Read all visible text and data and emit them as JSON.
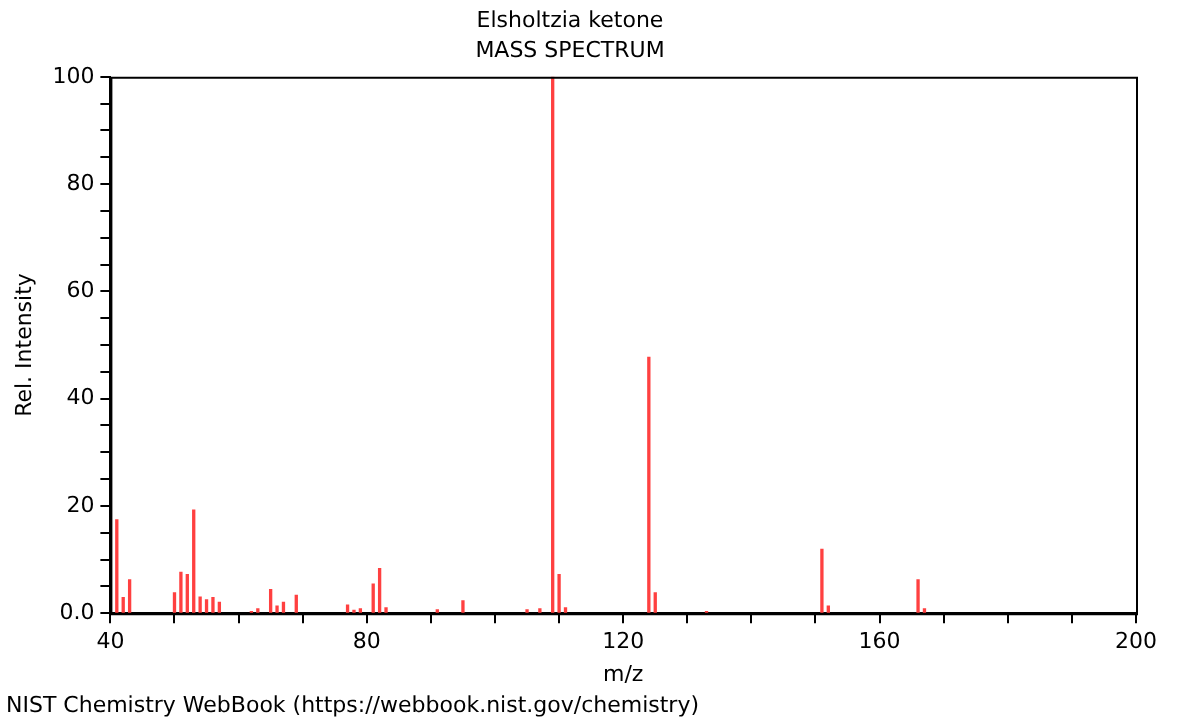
{
  "chart_data": {
    "type": "bar",
    "title": "Elsholtzia ketone",
    "subtitle": "MASS SPECTRUM",
    "xlabel": "m/z",
    "ylabel": "Rel. Intensity",
    "x": [
      41,
      42,
      43,
      50,
      51,
      52,
      53,
      54,
      55,
      56,
      57,
      62,
      63,
      65,
      66,
      67,
      69,
      77,
      78,
      79,
      81,
      82,
      83,
      91,
      95,
      105,
      107,
      109,
      110,
      111,
      124,
      125,
      133,
      151,
      152,
      166,
      167
    ],
    "values": [
      17.4,
      2.9,
      6.2,
      3.8,
      7.6,
      7.2,
      19.2,
      3,
      2.5,
      2.9,
      2,
      0.3,
      0.8,
      4.4,
      1.3,
      2,
      3.3,
      1.5,
      0.5,
      0.8,
      5.4,
      8.3,
      1,
      0.6,
      2.3,
      0.6,
      0.8,
      100,
      7.2,
      1,
      47.7,
      3.8,
      0.3,
      11.9,
      1.3,
      6.2,
      0.8
    ],
    "color": "#ff4040",
    "xlim": [
      40,
      200
    ],
    "xticks": [
      40,
      {
        "value": 50,
        "label": null
      },
      {
        "value": 60,
        "label": null
      },
      {
        "value": 70,
        "label": null
      },
      80,
      {
        "value": 90,
        "label": null
      },
      {
        "value": 100,
        "label": null
      },
      {
        "value": 110,
        "label": null
      },
      120,
      {
        "value": 130,
        "label": null
      },
      {
        "value": 140,
        "label": null
      },
      {
        "value": 150,
        "label": null
      },
      160,
      {
        "value": 170,
        "label": null
      },
      {
        "value": 180,
        "label": null
      },
      {
        "value": 190,
        "label": null
      },
      200
    ],
    "ylim": [
      0,
      100
    ],
    "yticks": [
      {
        "value": 0,
        "label": "0.0"
      },
      {
        "value": 5,
        "label": null
      },
      {
        "value": 10,
        "label": null
      },
      {
        "value": 15,
        "label": null
      },
      20,
      {
        "value": 25,
        "label": null
      },
      {
        "value": 30,
        "label": null
      },
      {
        "value": 35,
        "label": null
      },
      40,
      {
        "value": 45,
        "label": null
      },
      {
        "value": 50,
        "label": null
      },
      {
        "value": 55,
        "label": null
      },
      60,
      {
        "value": 65,
        "label": null
      },
      {
        "value": 70,
        "label": null
      },
      {
        "value": 75,
        "label": null
      },
      80,
      {
        "value": 85,
        "label": null
      },
      {
        "value": 90,
        "label": null
      },
      {
        "value": 95,
        "label": null
      },
      100
    ],
    "grid": false,
    "legend": false,
    "annotations": [
      "NIST Chemistry WebBook (https://webbook.nist.gov/chemistry)"
    ]
  }
}
